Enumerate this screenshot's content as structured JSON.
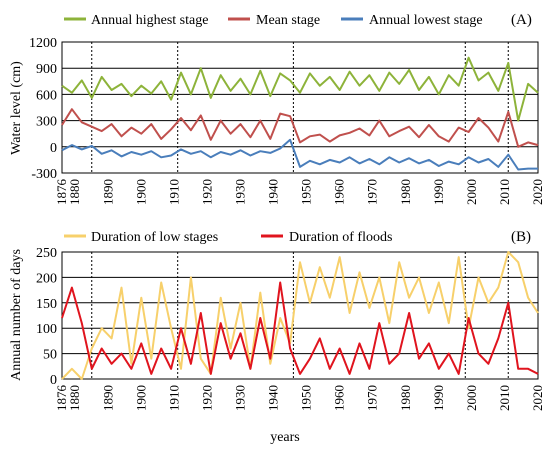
{
  "chart_data": [
    {
      "type": "line",
      "panel_label": "(A)",
      "ylabel": "Water level (cm)",
      "xlim": [
        1876,
        2020
      ],
      "ylim": [
        -300,
        1200
      ],
      "yticks": [
        -300,
        0,
        300,
        600,
        900,
        1200
      ],
      "xticks": [
        1876,
        1880,
        1890,
        1900,
        1910,
        1920,
        1930,
        1940,
        1950,
        1960,
        1970,
        1980,
        1990,
        2000,
        2010,
        2020
      ],
      "grid": "horizontal",
      "legend_position": "top",
      "vlines": [
        1885,
        1911,
        1946,
        1998,
        2011
      ],
      "series": [
        {
          "name": "Annual highest stage",
          "color": "#8db33a",
          "x": [
            1876,
            1879,
            1882,
            1885,
            1888,
            1891,
            1894,
            1897,
            1900,
            1903,
            1906,
            1909,
            1912,
            1915,
            1918,
            1921,
            1924,
            1927,
            1930,
            1933,
            1936,
            1939,
            1942,
            1945,
            1948,
            1951,
            1954,
            1957,
            1960,
            1963,
            1966,
            1969,
            1972,
            1975,
            1978,
            1981,
            1984,
            1987,
            1990,
            1993,
            1996,
            1999,
            2002,
            2005,
            2008,
            2011,
            2014,
            2017,
            2020
          ],
          "values": [
            700,
            620,
            760,
            560,
            800,
            650,
            720,
            580,
            700,
            610,
            750,
            540,
            850,
            600,
            900,
            560,
            820,
            640,
            780,
            600,
            870,
            580,
            840,
            760,
            620,
            840,
            700,
            800,
            650,
            860,
            700,
            820,
            640,
            850,
            720,
            880,
            650,
            800,
            600,
            820,
            700,
            1020,
            760,
            850,
            640,
            960,
            300,
            720,
            620
          ]
        },
        {
          "name": "Mean stage",
          "color": "#c0504d",
          "x": [
            1876,
            1879,
            1882,
            1885,
            1888,
            1891,
            1894,
            1897,
            1900,
            1903,
            1906,
            1909,
            1912,
            1915,
            1918,
            1921,
            1924,
            1927,
            1930,
            1933,
            1936,
            1939,
            1942,
            1945,
            1948,
            1951,
            1954,
            1957,
            1960,
            1963,
            1966,
            1969,
            1972,
            1975,
            1978,
            1981,
            1984,
            1987,
            1990,
            1993,
            1996,
            1999,
            2002,
            2005,
            2008,
            2011,
            2014,
            2017,
            2020
          ],
          "values": [
            250,
            430,
            280,
            230,
            180,
            260,
            120,
            220,
            150,
            260,
            90,
            200,
            330,
            190,
            360,
            80,
            300,
            150,
            260,
            110,
            300,
            90,
            380,
            350,
            50,
            120,
            140,
            60,
            130,
            160,
            210,
            130,
            300,
            120,
            180,
            230,
            110,
            250,
            120,
            60,
            220,
            170,
            330,
            220,
            60,
            400,
            0,
            50,
            20
          ]
        },
        {
          "name": "Annual lowest stage",
          "color": "#4a7ebb",
          "x": [
            1876,
            1879,
            1882,
            1885,
            1888,
            1891,
            1894,
            1897,
            1900,
            1903,
            1906,
            1909,
            1912,
            1915,
            1918,
            1921,
            1924,
            1927,
            1930,
            1933,
            1936,
            1939,
            1942,
            1945,
            1948,
            1951,
            1954,
            1957,
            1960,
            1963,
            1966,
            1969,
            1972,
            1975,
            1978,
            1981,
            1984,
            1987,
            1990,
            1993,
            1996,
            1999,
            2002,
            2005,
            2008,
            2011,
            2014,
            2017,
            2020
          ],
          "values": [
            -40,
            20,
            -30,
            10,
            -80,
            -40,
            -110,
            -60,
            -90,
            -50,
            -120,
            -100,
            -30,
            -80,
            -50,
            -120,
            -60,
            -90,
            -40,
            -100,
            -50,
            -70,
            -20,
            80,
            -230,
            -160,
            -200,
            -150,
            -180,
            -120,
            -190,
            -140,
            -200,
            -120,
            -180,
            -130,
            -190,
            -150,
            -220,
            -170,
            -200,
            -120,
            -180,
            -140,
            -230,
            -90,
            -260,
            -250,
            -250
          ]
        }
      ]
    },
    {
      "type": "line",
      "panel_label": "(B)",
      "ylabel": "Annual number of days",
      "xlabel": "years",
      "xlim": [
        1876,
        2020
      ],
      "ylim": [
        0,
        250
      ],
      "yticks": [
        0,
        50,
        100,
        150,
        200,
        250
      ],
      "xticks": [
        1876,
        1880,
        1890,
        1900,
        1910,
        1920,
        1930,
        1940,
        1950,
        1960,
        1970,
        1980,
        1990,
        2000,
        2010,
        2020
      ],
      "grid": "horizontal",
      "legend_position": "top",
      "vlines": [
        1885,
        1911,
        1946,
        1998,
        2011
      ],
      "series": [
        {
          "name": "Duration of low stages",
          "color": "#f7d06b",
          "x": [
            1876,
            1879,
            1882,
            1885,
            1888,
            1891,
            1894,
            1897,
            1900,
            1903,
            1906,
            1909,
            1912,
            1915,
            1918,
            1921,
            1924,
            1927,
            1930,
            1933,
            1936,
            1939,
            1942,
            1945,
            1948,
            1951,
            1954,
            1957,
            1960,
            1963,
            1966,
            1969,
            1972,
            1975,
            1978,
            1981,
            1984,
            1987,
            1990,
            1993,
            1996,
            1999,
            2002,
            2005,
            2008,
            2011,
            2014,
            2017,
            2020
          ],
          "values": [
            0,
            20,
            0,
            60,
            100,
            80,
            180,
            30,
            160,
            40,
            190,
            100,
            20,
            200,
            40,
            10,
            160,
            60,
            150,
            20,
            170,
            30,
            120,
            70,
            230,
            150,
            220,
            160,
            240,
            130,
            210,
            140,
            200,
            110,
            230,
            160,
            200,
            130,
            190,
            110,
            240,
            100,
            200,
            150,
            180,
            250,
            230,
            160,
            130
          ]
        },
        {
          "name": "Duration of floods",
          "color": "#e0141e",
          "x": [
            1876,
            1879,
            1882,
            1885,
            1888,
            1891,
            1894,
            1897,
            1900,
            1903,
            1906,
            1909,
            1912,
            1915,
            1918,
            1921,
            1924,
            1927,
            1930,
            1933,
            1936,
            1939,
            1942,
            1945,
            1948,
            1951,
            1954,
            1957,
            1960,
            1963,
            1966,
            1969,
            1972,
            1975,
            1978,
            1981,
            1984,
            1987,
            1990,
            1993,
            1996,
            1999,
            2002,
            2005,
            2008,
            2011,
            2014,
            2017,
            2020
          ],
          "values": [
            120,
            180,
            110,
            20,
            60,
            30,
            50,
            20,
            70,
            10,
            60,
            20,
            100,
            30,
            130,
            10,
            110,
            40,
            90,
            20,
            120,
            40,
            190,
            60,
            10,
            40,
            80,
            20,
            60,
            10,
            70,
            20,
            110,
            30,
            50,
            130,
            40,
            70,
            20,
            50,
            10,
            120,
            50,
            30,
            80,
            150,
            20,
            20,
            10
          ]
        }
      ]
    }
  ]
}
